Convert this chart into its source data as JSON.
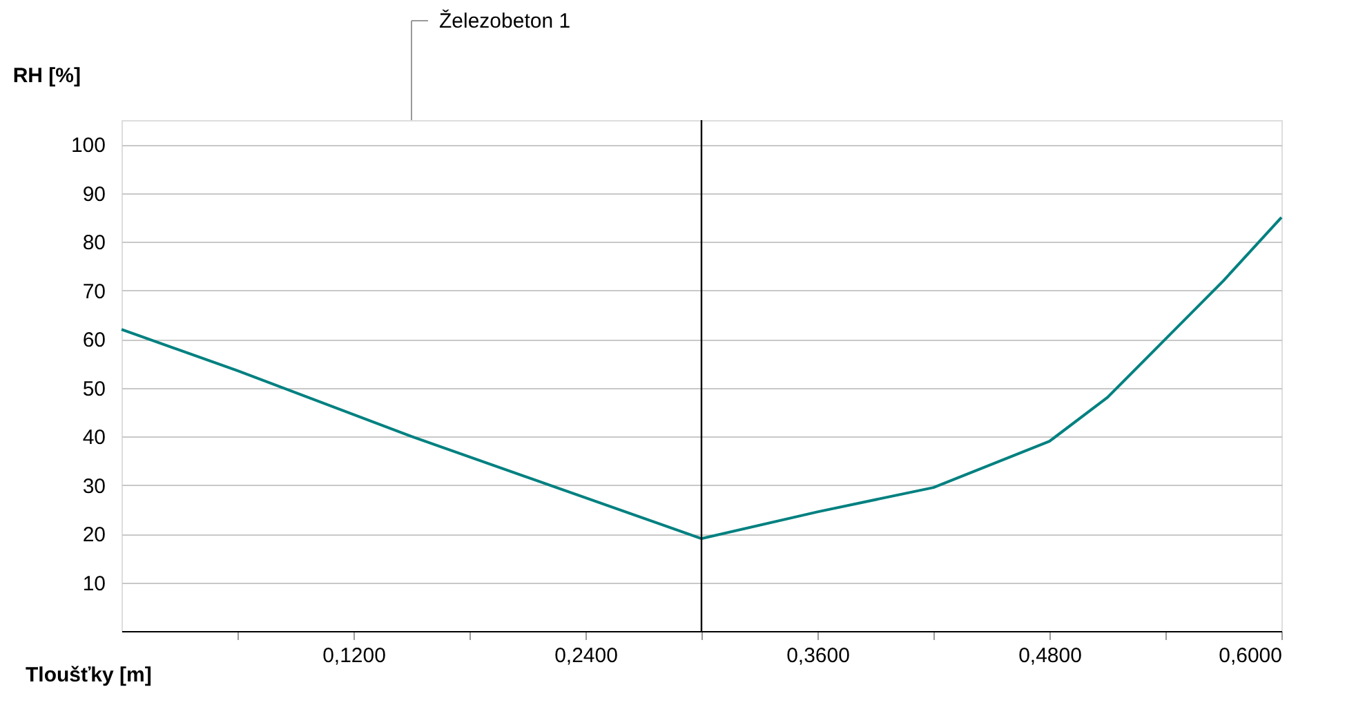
{
  "chart_data": {
    "type": "line",
    "xlabel": "Tloušťky [m]",
    "ylabel": "RH [%]",
    "annotations": [
      "Železobeton 1"
    ],
    "series": [
      {
        "color": "#008080",
        "x": [
          0,
          0.06,
          0.15,
          0.3,
          0.36,
          0.42,
          0.48,
          0.51,
          0.54,
          0.57,
          0.6
        ],
        "values": [
          62,
          53.5,
          40,
          19,
          24.5,
          29.5,
          39,
          48,
          60,
          72,
          85
        ]
      }
    ],
    "xlim": [
      0,
      0.6
    ],
    "xticks": [
      {
        "value": 0.06,
        "label": null
      },
      {
        "value": 0.12,
        "label": "0,1200"
      },
      {
        "value": 0.18,
        "label": null
      },
      {
        "value": 0.24,
        "label": "0,2400"
      },
      {
        "value": 0.3,
        "label": null
      },
      {
        "value": 0.36,
        "label": "0,3600"
      },
      {
        "value": 0.42,
        "label": null
      },
      {
        "value": 0.48,
        "label": "0,4800"
      },
      {
        "value": 0.54,
        "label": null
      },
      {
        "value": 0.6,
        "label": "0,6000"
      }
    ],
    "ylim": [
      0,
      105
    ],
    "yticks": [
      10,
      20,
      30,
      40,
      50,
      60,
      70,
      80,
      90,
      100
    ],
    "ref_lines": [
      {
        "axis": "x",
        "value": 0.3,
        "color": "#000000"
      }
    ],
    "grid": "y",
    "legend": false,
    "marker": "none",
    "line_style": "solid"
  }
}
